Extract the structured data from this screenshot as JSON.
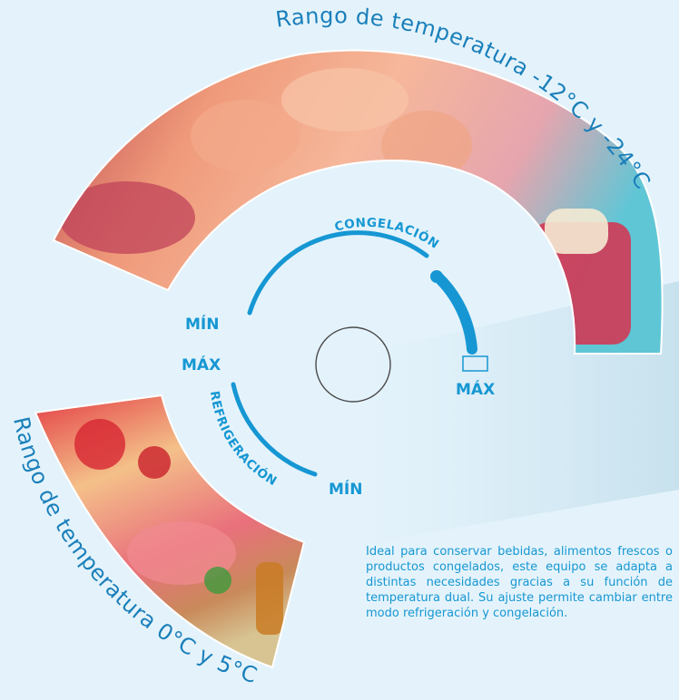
{
  "texts": {
    "top_range_label": "Rango de temperatura -12°C y -24°C",
    "bottom_range_label": "Rango de temperatura 0°C y 5°C",
    "freeze_mode": "CONGELACIÓN",
    "fridge_mode": "REFRIGERACIÓN",
    "freeze_min": "MÍN",
    "freeze_max": "MÁX",
    "fridge_max": "MÁX",
    "fridge_min": "MÍN",
    "description": "Ideal para conservar bebidas, alimentos frescos o productos congelados, este equipo se adapta a distintas necesidades gracias a su función de temperatura dual. Su ajuste permite cambiar entre modo refrigeración y congelación."
  },
  "colors": {
    "background": "#e4f3fb",
    "accent_blue": "#1697d3",
    "label_text": "#1a7fba",
    "dial_ring": "#4a4a4a"
  },
  "icons": {
    "top_photo": "frozen-food-photo",
    "bottom_photo": "fresh-food-photo",
    "dial": "thermostat-dial-icon",
    "max_marker": "max-marker-icon"
  }
}
